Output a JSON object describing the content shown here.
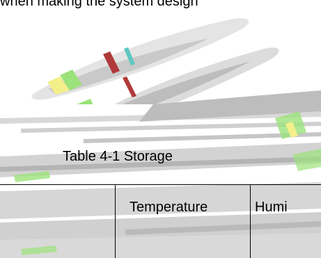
{
  "top_text": "when making the system design",
  "caption": "Table 4-1 Storage",
  "table": {
    "headers": [
      "",
      "Temperature",
      "Humi"
    ]
  }
}
